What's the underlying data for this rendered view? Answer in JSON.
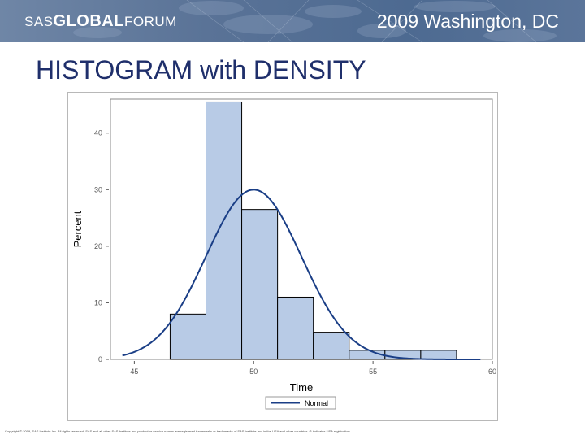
{
  "header": {
    "brand_prefix": "SAS",
    "brand_bold": "GLOBAL",
    "brand_suffix": "FORUM",
    "event": "2009 Washington, DC"
  },
  "slide": {
    "title": "HISTOGRAM with DENSITY"
  },
  "footer": {
    "copyright": "Copyright © 2009, SAS Institute Inc. All rights reserved. SAS and all other SAS Institute Inc. product or service names are registered trademarks or trademarks of SAS Institute Inc. in the USA and other countries. ® indicates USA registration."
  },
  "colors": {
    "bar_fill": "#b8cbe6",
    "bar_edge": "#000000",
    "curve": "#1a3e86",
    "title": "#1f2f6b"
  },
  "chart_data": {
    "type": "bar",
    "xlabel": "Time",
    "ylabel": "Percent",
    "xlim": [
      44,
      60
    ],
    "ylim": [
      0,
      46
    ],
    "xticks": [
      45,
      50,
      55,
      60
    ],
    "yticks": [
      0,
      10,
      20,
      30,
      40
    ],
    "bins": [
      {
        "x0": 46.5,
        "x1": 48,
        "value": 8
      },
      {
        "x0": 48,
        "x1": 49.5,
        "value": 45.5
      },
      {
        "x0": 49.5,
        "x1": 51,
        "value": 26.5
      },
      {
        "x0": 51,
        "x1": 52.5,
        "value": 11
      },
      {
        "x0": 52.5,
        "x1": 54,
        "value": 4.8
      },
      {
        "x0": 54,
        "x1": 55.5,
        "value": 1.6
      },
      {
        "x0": 55.5,
        "x1": 57,
        "value": 1.6
      },
      {
        "x0": 57,
        "x1": 58.5,
        "value": 1.6
      }
    ],
    "density": {
      "name": "Normal",
      "mean": 50,
      "sd": 2.0,
      "peak": 30,
      "x_range": [
        44.5,
        59.5
      ]
    },
    "legend": {
      "entries": [
        "Normal"
      ],
      "position": "bottom"
    }
  }
}
